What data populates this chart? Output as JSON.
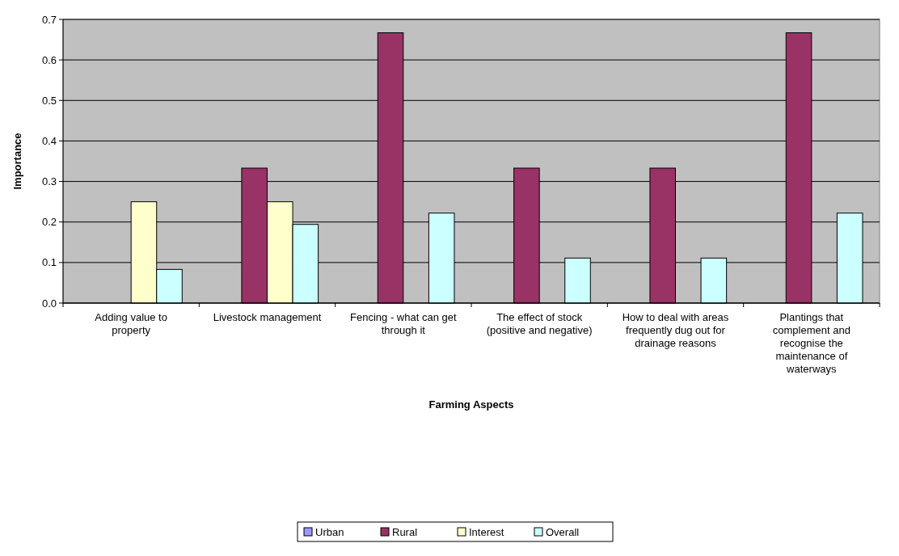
{
  "chart_data": {
    "type": "bar",
    "xlabel": "Farming Aspects",
    "ylabel": "Importance",
    "categories": [
      "Adding value to property",
      "Livestock management",
      "Fencing - what can get through it",
      "The effect of stock (positive and negative)",
      "How to deal with areas frequently dug out for drainage reasons",
      "Plantings that complement and recognise the maintenance of waterways"
    ],
    "series": [
      {
        "name": "Urban",
        "color": "#9999ff",
        "values": [
          0,
          0,
          0,
          0,
          0,
          0
        ]
      },
      {
        "name": "Rural",
        "color": "#993366",
        "values": [
          0,
          0.333,
          0.667,
          0.333,
          0.333,
          0.667
        ]
      },
      {
        "name": "Interest",
        "color": "#ffffcc",
        "values": [
          0.25,
          0.25,
          0,
          0,
          0,
          0
        ]
      },
      {
        "name": "Overall",
        "color": "#ccffff",
        "values": [
          0.083,
          0.194,
          0.222,
          0.111,
          0.111,
          0.222
        ]
      }
    ],
    "ylim": [
      0,
      0.7
    ],
    "yticks": [
      {
        "value": 0,
        "label": "0.0"
      },
      0.1,
      0.2,
      0.3,
      0.4,
      0.5,
      0.6,
      0.7
    ],
    "grid": "y",
    "legend": "bottom"
  }
}
